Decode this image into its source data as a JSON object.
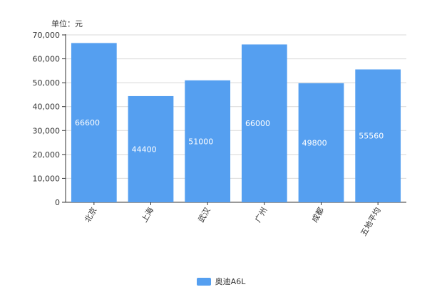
{
  "chart_data": {
    "type": "bar",
    "unit_label": "单位：元",
    "categories": [
      "北京",
      "上海",
      "武汉",
      "广州",
      "成都",
      "五地平均"
    ],
    "series": [
      {
        "name": "奥迪A6L",
        "values": [
          66600,
          44400,
          51000,
          66000,
          49800,
          55560
        ],
        "color": "#559ff0"
      }
    ],
    "ylim": [
      0,
      70000
    ],
    "yticks": [
      "0",
      "10,000",
      "20,000",
      "30,000",
      "40,000",
      "50,000",
      "60,000",
      "70,000"
    ],
    "grid": true,
    "legend_position": "bottom-center",
    "data_labels": true
  }
}
